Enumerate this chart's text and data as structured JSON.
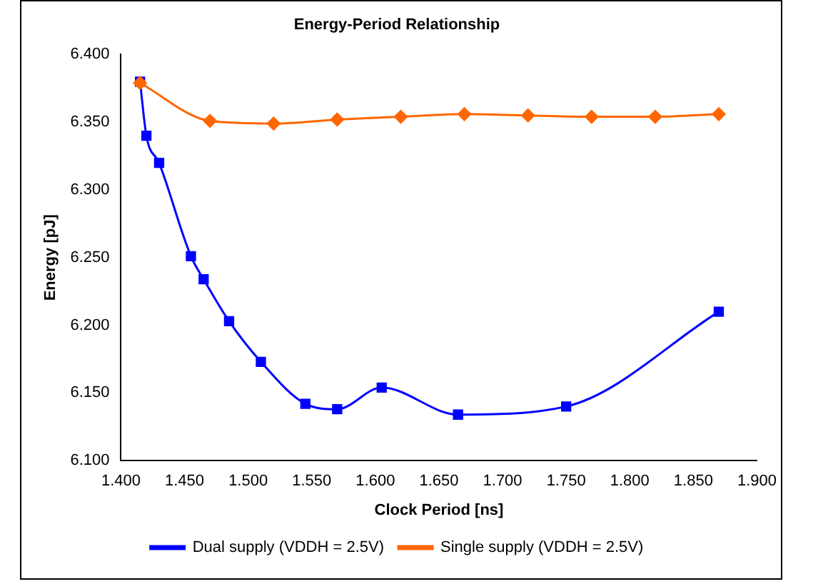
{
  "chart_data": {
    "type": "line",
    "title": "Energy-Period Relationship",
    "xlabel": "Clock Period [ns]",
    "ylabel": "Energy [pJ]",
    "xlim": [
      1.4,
      1.9
    ],
    "xticks": [
      {
        "value": 1.4,
        "label": "1.400"
      },
      {
        "value": 1.45,
        "label": "1.450"
      },
      {
        "value": 1.5,
        "label": "1.500"
      },
      {
        "value": 1.55,
        "label": "1.550"
      },
      {
        "value": 1.6,
        "label": "1.600"
      },
      {
        "value": 1.65,
        "label": "1.650"
      },
      {
        "value": 1.7,
        "label": "1.700"
      },
      {
        "value": 1.75,
        "label": "1.750"
      },
      {
        "value": 1.8,
        "label": "1.800"
      },
      {
        "value": 1.85,
        "label": "1.850"
      },
      {
        "value": 1.9,
        "label": "1.900"
      }
    ],
    "ylim": [
      6.1,
      6.4
    ],
    "yticks": [
      {
        "value": 6.1,
        "label": "6.100"
      },
      {
        "value": 6.15,
        "label": "6.150"
      },
      {
        "value": 6.2,
        "label": "6.200"
      },
      {
        "value": 6.25,
        "label": "6.250"
      },
      {
        "value": 6.3,
        "label": "6.300"
      },
      {
        "value": 6.35,
        "label": "6.350"
      },
      {
        "value": 6.4,
        "label": "6.400"
      }
    ],
    "grid": false,
    "legend": "bottom",
    "series": [
      {
        "name": "Dual supply (VDDH = 2.5V)",
        "color": "#0000ff",
        "marker": "square",
        "x": [
          1.415,
          1.42,
          1.43,
          1.455,
          1.465,
          1.485,
          1.51,
          1.545,
          1.57,
          1.605,
          1.665,
          1.75,
          1.87
        ],
        "values": [
          6.38,
          6.34,
          6.32,
          6.251,
          6.234,
          6.203,
          6.173,
          6.142,
          6.138,
          6.154,
          6.134,
          6.14,
          6.21
        ]
      },
      {
        "name": "Single supply (VDDH = 2.5V)",
        "color": "#ff6600",
        "marker": "diamond",
        "x": [
          1.415,
          1.47,
          1.52,
          1.57,
          1.62,
          1.67,
          1.72,
          1.77,
          1.82,
          1.87
        ],
        "values": [
          6.379,
          6.351,
          6.349,
          6.352,
          6.354,
          6.356,
          6.355,
          6.354,
          6.354,
          6.356
        ]
      }
    ]
  }
}
